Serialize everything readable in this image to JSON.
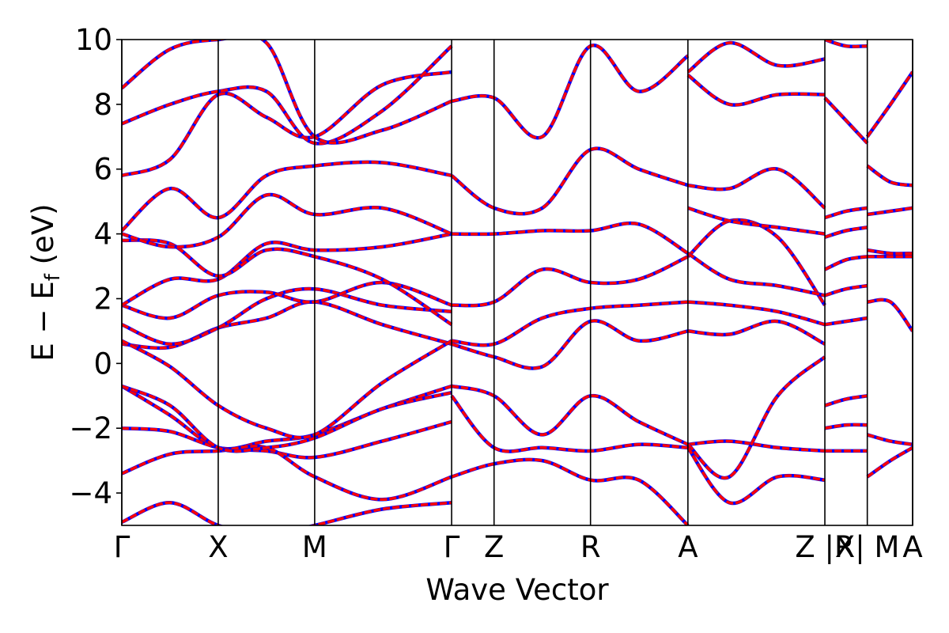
{
  "chart_data": {
    "type": "line",
    "xlabel": "Wave Vector",
    "ylabel": "E − E",
    "ylabel_sub": "f",
    "ylabel_unit": " (eV)",
    "ylim": [
      -5,
      10
    ],
    "yticks": [
      {
        "value": -4,
        "label": "−4"
      },
      {
        "value": -2,
        "label": "−2"
      },
      {
        "value": 0,
        "label": "0"
      },
      {
        "value": 2,
        "label": "2"
      },
      {
        "value": 4,
        "label": "4"
      },
      {
        "value": 6,
        "label": "6"
      },
      {
        "value": 8,
        "label": "8"
      },
      {
        "value": 10,
        "label": "10"
      }
    ],
    "xlim": [
      0,
      8.2
    ],
    "kpoints": [
      {
        "x": 0.0,
        "label": "Γ"
      },
      {
        "x": 1.0,
        "label": "X"
      },
      {
        "x": 2.0,
        "label": "M"
      },
      {
        "x": 3.42,
        "label": "Γ"
      },
      {
        "x": 3.86,
        "label": "Z"
      },
      {
        "x": 4.86,
        "label": "R"
      },
      {
        "x": 5.87,
        "label": "A"
      },
      {
        "x": 7.29,
        "label": "Z |R"
      },
      {
        "x": 7.73,
        "label": "X| M"
      },
      {
        "x": 8.2,
        "label": "A"
      }
    ],
    "series_colors": {
      "primary": "#ff0000",
      "overlay": "#0000ff"
    },
    "series": [
      {
        "x": [
          0,
          0.5,
          1.0,
          1.5,
          2.0,
          2.7,
          3.42
        ],
        "y": [
          -0.7,
          -1.6,
          -2.6,
          -2.4,
          -2.2,
          -1.4,
          -0.7
        ]
      },
      {
        "x": [
          0,
          0.5,
          1.0,
          1.5,
          2.0,
          2.7,
          3.42
        ],
        "y": [
          -2.0,
          -2.1,
          -2.6,
          -2.7,
          -2.9,
          -2.4,
          -1.8
        ]
      },
      {
        "x": [
          0,
          0.5,
          1.0,
          1.5,
          2.0,
          2.7,
          3.42
        ],
        "y": [
          -3.4,
          -2.8,
          -2.7,
          -2.6,
          -3.5,
          -4.2,
          -3.5
        ]
      },
      {
        "x": [
          0,
          0.5,
          1.0,
          1.5,
          2.0,
          2.7,
          3.42
        ],
        "y": [
          -0.7,
          -1.3,
          -2.6,
          -2.6,
          -2.3,
          -1.4,
          -0.9
        ]
      },
      {
        "x": [
          0,
          0.5,
          1.0,
          1.5,
          2.0,
          2.7,
          3.42
        ],
        "y": [
          0.6,
          0.5,
          1.1,
          1.4,
          1.9,
          1.2,
          0.6
        ]
      },
      {
        "x": [
          0,
          0.5,
          1.0,
          1.5,
          2.0,
          2.7,
          3.42
        ],
        "y": [
          0.7,
          -0.1,
          -1.3,
          -2.0,
          -2.2,
          -0.6,
          0.7
        ]
      },
      {
        "x": [
          0,
          0.5,
          1.0,
          1.5,
          2.0,
          2.7,
          3.42
        ],
        "y": [
          1.2,
          0.6,
          1.1,
          2.0,
          2.3,
          1.8,
          1.6
        ]
      },
      {
        "x": [
          0,
          0.5,
          1.0,
          1.5,
          2.0,
          2.7,
          3.42
        ],
        "y": [
          1.8,
          1.4,
          2.1,
          2.2,
          1.9,
          2.5,
          1.8
        ]
      },
      {
        "x": [
          0,
          0.5,
          1.0,
          1.5,
          2.0,
          2.7,
          3.42
        ],
        "y": [
          1.8,
          2.6,
          2.6,
          3.7,
          3.5,
          3.6,
          4.0
        ]
      },
      {
        "x": [
          0,
          0.5,
          1.0,
          1.5,
          2.0,
          2.7,
          3.42
        ],
        "y": [
          3.8,
          3.7,
          2.7,
          3.5,
          3.3,
          2.6,
          1.2
        ]
      },
      {
        "x": [
          0,
          0.5,
          1.0,
          1.5,
          2.0,
          2.7,
          3.42
        ],
        "y": [
          4.0,
          3.6,
          3.9,
          5.2,
          4.6,
          4.8,
          4.0
        ]
      },
      {
        "x": [
          0,
          0.5,
          1.0,
          1.5,
          2.0,
          2.7,
          3.42
        ],
        "y": [
          4.1,
          5.4,
          4.5,
          5.8,
          6.1,
          6.2,
          5.8
        ]
      },
      {
        "x": [
          0,
          0.5,
          1.0,
          1.5,
          2.0,
          2.7,
          3.42
        ],
        "y": [
          5.8,
          6.3,
          8.3,
          7.6,
          7.0,
          8.6,
          9.0
        ]
      },
      {
        "x": [
          0,
          0.5,
          1.0,
          1.5,
          2.0,
          2.7,
          3.42
        ],
        "y": [
          7.4,
          8.0,
          8.4,
          8.4,
          6.8,
          7.8,
          9.8
        ]
      },
      {
        "x": [
          0,
          0.5,
          1.0,
          1.5,
          2.0,
          2.7,
          3.42
        ],
        "y": [
          8.5,
          9.7,
          10.0,
          9.9,
          7.0,
          7.2,
          8.1
        ]
      },
      {
        "x": [
          0,
          0.5,
          1.0,
          1.5,
          2.0,
          2.7,
          3.42
        ],
        "y": [
          -4.9,
          -4.3,
          -5.0,
          -5.3,
          -5.0,
          -4.5,
          -4.3
        ]
      },
      {
        "x": [
          3.42,
          3.86,
          4.36,
          4.86,
          5.36,
          5.87
        ],
        "y": [
          -0.7,
          -1.0,
          -2.2,
          -1.0,
          -1.8,
          -2.5
        ]
      },
      {
        "x": [
          3.42,
          3.86,
          4.36,
          4.86,
          5.36,
          5.87
        ],
        "y": [
          0.6,
          0.2,
          -0.1,
          1.3,
          0.7,
          1.0
        ]
      },
      {
        "x": [
          3.42,
          3.86,
          4.36,
          4.86,
          5.36,
          5.87
        ],
        "y": [
          0.7,
          0.6,
          1.4,
          1.7,
          1.8,
          1.9
        ]
      },
      {
        "x": [
          3.42,
          3.86,
          4.36,
          4.86,
          5.36,
          5.87
        ],
        "y": [
          1.8,
          1.9,
          2.9,
          2.5,
          2.6,
          3.3
        ]
      },
      {
        "x": [
          3.42,
          3.86,
          4.36,
          4.86,
          5.36,
          5.87
        ],
        "y": [
          4.0,
          4.0,
          4.1,
          4.1,
          4.3,
          3.4
        ]
      },
      {
        "x": [
          3.42,
          3.86,
          4.36,
          4.86,
          5.36,
          5.87
        ],
        "y": [
          5.8,
          4.8,
          4.8,
          6.6,
          6.0,
          5.5
        ]
      },
      {
        "x": [
          3.42,
          3.86,
          4.36,
          4.86,
          5.36,
          5.87
        ],
        "y": [
          8.1,
          8.2,
          7.0,
          9.8,
          8.4,
          9.5
        ]
      },
      {
        "x": [
          3.42,
          3.86,
          4.36,
          4.86,
          5.36,
          5.87
        ],
        "y": [
          -1.0,
          -2.6,
          -2.6,
          -2.7,
          -2.5,
          -2.6
        ]
      },
      {
        "x": [
          3.42,
          3.86,
          4.36,
          4.86,
          5.36,
          5.87
        ],
        "y": [
          -3.5,
          -3.1,
          -3.0,
          -3.6,
          -3.6,
          -5.0
        ]
      },
      {
        "x": [
          5.87,
          6.3,
          6.8,
          7.29
        ],
        "y": [
          -2.5,
          -2.4,
          -2.6,
          -2.7
        ]
      },
      {
        "x": [
          5.87,
          6.3,
          6.8,
          7.29
        ],
        "y": [
          -2.5,
          -3.5,
          -1.0,
          0.2
        ]
      },
      {
        "x": [
          5.87,
          6.3,
          6.8,
          7.29
        ],
        "y": [
          1.0,
          0.9,
          1.3,
          0.6
        ]
      },
      {
        "x": [
          5.87,
          6.3,
          6.8,
          7.29
        ],
        "y": [
          1.9,
          1.8,
          1.6,
          1.2
        ]
      },
      {
        "x": [
          5.87,
          6.3,
          6.8,
          7.29
        ],
        "y": [
          3.3,
          4.4,
          3.9,
          1.8
        ]
      },
      {
        "x": [
          5.87,
          6.3,
          6.8,
          7.29
        ],
        "y": [
          3.4,
          2.6,
          2.4,
          2.1
        ]
      },
      {
        "x": [
          5.87,
          6.3,
          6.8,
          7.29
        ],
        "y": [
          4.8,
          4.4,
          4.2,
          4.0
        ]
      },
      {
        "x": [
          5.87,
          6.3,
          6.8,
          7.29
        ],
        "y": [
          5.5,
          5.4,
          6.0,
          4.8
        ]
      },
      {
        "x": [
          5.87,
          6.3,
          6.8,
          7.29
        ],
        "y": [
          8.9,
          8.0,
          8.3,
          8.3
        ]
      },
      {
        "x": [
          5.87,
          6.3,
          6.8,
          7.29
        ],
        "y": [
          9.0,
          9.9,
          9.2,
          9.4
        ]
      },
      {
        "x": [
          5.87,
          6.3,
          6.8,
          7.29
        ],
        "y": [
          -2.6,
          -4.3,
          -3.5,
          -3.6
        ]
      },
      {
        "x": [
          7.29,
          7.51,
          7.73
        ],
        "y": [
          -1.3,
          -1.1,
          -1.0
        ]
      },
      {
        "x": [
          7.29,
          7.51,
          7.73
        ],
        "y": [
          -2.0,
          -1.9,
          -1.9
        ]
      },
      {
        "x": [
          7.29,
          7.51,
          7.73
        ],
        "y": [
          -2.7,
          -2.7,
          -2.7
        ]
      },
      {
        "x": [
          7.29,
          7.51,
          7.73
        ],
        "y": [
          1.2,
          1.3,
          1.4
        ]
      },
      {
        "x": [
          7.29,
          7.51,
          7.73
        ],
        "y": [
          2.1,
          2.3,
          2.4
        ]
      },
      {
        "x": [
          7.29,
          7.51,
          7.73
        ],
        "y": [
          2.9,
          3.2,
          3.3
        ]
      },
      {
        "x": [
          7.29,
          7.51,
          7.73
        ],
        "y": [
          3.9,
          4.1,
          4.2
        ]
      },
      {
        "x": [
          7.29,
          7.51,
          7.73
        ],
        "y": [
          4.5,
          4.7,
          4.8
        ]
      },
      {
        "x": [
          7.29,
          7.51,
          7.73
        ],
        "y": [
          8.2,
          7.5,
          6.8
        ]
      },
      {
        "x": [
          7.29,
          7.51,
          7.73
        ],
        "y": [
          10.0,
          9.8,
          9.8
        ]
      },
      {
        "x": [
          7.73,
          7.97,
          8.2
        ],
        "y": [
          -2.2,
          -2.4,
          -2.5
        ]
      },
      {
        "x": [
          7.73,
          7.97,
          8.2
        ],
        "y": [
          -3.5,
          -3.0,
          -2.6
        ]
      },
      {
        "x": [
          7.73,
          7.97,
          8.2
        ],
        "y": [
          1.9,
          1.9,
          1.0
        ]
      },
      {
        "x": [
          7.73,
          7.97,
          8.2
        ],
        "y": [
          3.3,
          3.3,
          3.3
        ]
      },
      {
        "x": [
          7.73,
          7.97,
          8.2
        ],
        "y": [
          3.5,
          3.4,
          3.4
        ]
      },
      {
        "x": [
          7.73,
          7.97,
          8.2
        ],
        "y": [
          4.6,
          4.7,
          4.8
        ]
      },
      {
        "x": [
          7.73,
          7.97,
          8.2
        ],
        "y": [
          6.1,
          5.6,
          5.5
        ]
      },
      {
        "x": [
          7.73,
          7.97,
          8.2
        ],
        "y": [
          7.0,
          8.0,
          9.0
        ]
      }
    ]
  }
}
